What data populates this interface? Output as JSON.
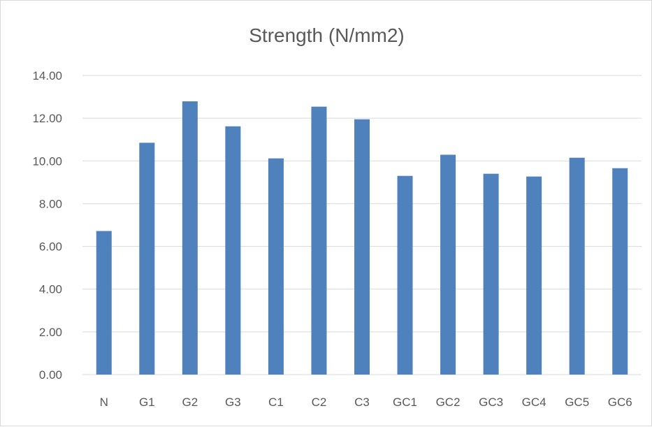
{
  "chart_data": {
    "type": "bar",
    "title": "Strength (N/mm2)",
    "xlabel": "",
    "ylabel": "",
    "categories": [
      "N",
      "G1",
      "G2",
      "G3",
      "C1",
      "C2",
      "C3",
      "GC1",
      "GC2",
      "GC3",
      "GC4",
      "GC5",
      "GC6"
    ],
    "values": [
      6.72,
      10.85,
      12.79,
      11.62,
      10.12,
      12.54,
      11.95,
      9.3,
      10.29,
      9.4,
      9.27,
      10.15,
      9.66
    ],
    "ylim": [
      0,
      14
    ],
    "yticks": [
      "0.00",
      "2.00",
      "4.00",
      "6.00",
      "8.00",
      "10.00",
      "12.00",
      "14.00"
    ],
    "grid": true,
    "legend": "none",
    "colors": {
      "bar": "#4f81bd",
      "grid": "#d9d9d9",
      "text": "#595959"
    }
  }
}
